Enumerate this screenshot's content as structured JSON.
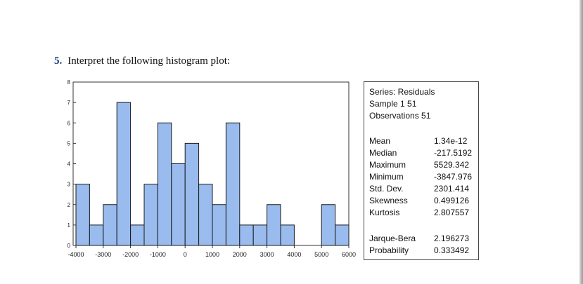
{
  "question": {
    "number": "5.",
    "text": "Interpret the following histogram plot:"
  },
  "chart_data": {
    "type": "bar",
    "title": "",
    "xlabel": "",
    "ylabel": "",
    "bin_width": 500,
    "bin_starts": [
      -4000,
      -3500,
      -3000,
      -2500,
      -2000,
      -1500,
      -1000,
      -500,
      0,
      500,
      1000,
      1500,
      2000,
      2500,
      3000,
      3500,
      4000,
      4500,
      5000,
      5500
    ],
    "values": [
      3,
      1,
      2,
      7,
      1,
      3,
      6,
      4,
      5,
      3,
      2,
      6,
      1,
      1,
      2,
      1,
      0,
      0,
      2,
      1
    ],
    "xlim": [
      -4000,
      6000
    ],
    "ylim": [
      0,
      8
    ],
    "x_ticks": [
      -4000,
      -3000,
      -2000,
      -1000,
      0,
      1000,
      2000,
      3000,
      4000,
      5000,
      6000
    ],
    "y_ticks": [
      0,
      1,
      2,
      3,
      4,
      5,
      6,
      7,
      8
    ],
    "bar_color": "#99bbee",
    "bar_edge_color": "#1a1a1a",
    "grid": false,
    "legend": "none"
  },
  "stats": {
    "header": [
      "Series: Residuals",
      "Sample 1 51",
      "Observations 51"
    ],
    "rows": [
      {
        "label": "Mean",
        "value": "1.34e-12"
      },
      {
        "label": "Median",
        "value": "-217.5192"
      },
      {
        "label": "Maximum",
        "value": "5529.342"
      },
      {
        "label": "Minimum",
        "value": "-3847.976"
      },
      {
        "label": "Std. Dev.",
        "value": "2301.414"
      },
      {
        "label": "Skewness",
        "value": "0.499126"
      },
      {
        "label": "Kurtosis",
        "value": "2.807557"
      }
    ],
    "test_rows": [
      {
        "label": "Jarque-Bera",
        "value": "2.196273"
      },
      {
        "label": "Probability",
        "value": "0.333492"
      }
    ]
  }
}
